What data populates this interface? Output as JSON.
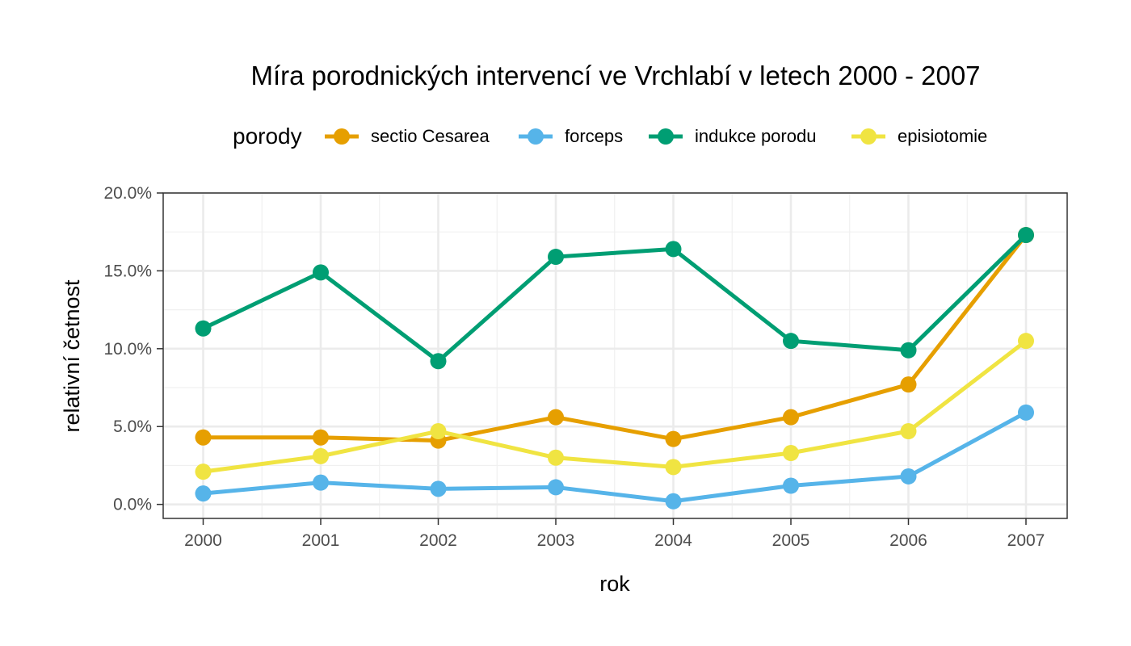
{
  "chart_data": {
    "type": "line",
    "title": "Míra porodnických intervencí ve Vrchlabí v letech 2000 - 2007",
    "xlabel": "rok",
    "ylabel": "relativní četnost",
    "x": [
      "2000",
      "2001",
      "2002",
      "2003",
      "2004",
      "2005",
      "2006",
      "2007"
    ],
    "y_ticks": [
      "0.0%",
      "5.0%",
      "10.0%",
      "15.0%",
      "20.0%"
    ],
    "ylim": [
      -0.009,
      0.2
    ],
    "y_unit": "fraction",
    "grid": true,
    "legend": {
      "title": "porody",
      "position": "top"
    },
    "series": [
      {
        "name": "sectio Cesarea",
        "color": "#E69F00",
        "values": [
          0.043,
          0.043,
          0.041,
          0.056,
          0.042,
          0.056,
          0.077,
          0.173
        ]
      },
      {
        "name": "forceps",
        "color": "#56B4E9",
        "values": [
          0.007,
          0.014,
          0.01,
          0.011,
          0.002,
          0.012,
          0.018,
          0.059
        ]
      },
      {
        "name": "indukce porodu",
        "color": "#009E73",
        "values": [
          0.113,
          0.149,
          0.092,
          0.159,
          0.164,
          0.105,
          0.099,
          0.173
        ]
      },
      {
        "name": "episiotomie",
        "color": "#F0E442",
        "values": [
          0.021,
          0.031,
          0.047,
          0.03,
          0.024,
          0.033,
          0.047,
          0.105
        ]
      }
    ]
  }
}
